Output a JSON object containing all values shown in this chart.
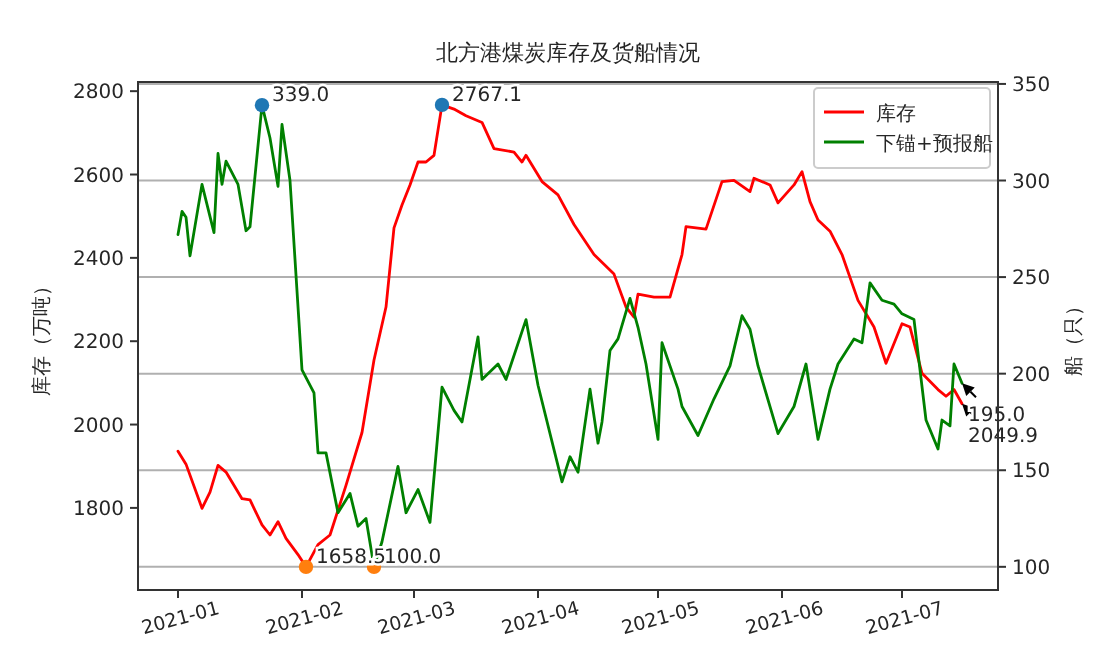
{
  "chart_data": {
    "type": "line",
    "title": "北方港煤炭库存及货船情况",
    "ylabel": "库存（万吨）",
    "y2label": "船（只）",
    "xlim": [
      "2020-12-22",
      "2021-07-25"
    ],
    "xticks": [
      "2021-01",
      "2021-02",
      "2021-03",
      "2021-04",
      "2021-05",
      "2021-06",
      "2021-07"
    ],
    "ylim": [
      1603,
      2822
    ],
    "yticks": [
      1800,
      2000,
      2200,
      2400,
      2600,
      2800
    ],
    "y2lim": [
      88,
      351
    ],
    "y2ticks": [
      100,
      150,
      200,
      250,
      300,
      350
    ],
    "grid": "y",
    "legend": "top right",
    "line_style": "solid",
    "series": [
      {
        "name": "库存",
        "color": "#ff0000",
        "axis": "y",
        "x": [
          "2021-01-01",
          "2021-01-03",
          "2021-01-07",
          "2021-01-09",
          "2021-01-11",
          "2021-01-13",
          "2021-01-17",
          "2021-01-19",
          "2021-01-22",
          "2021-01-24",
          "2021-01-26",
          "2021-01-28",
          "2021-01-31",
          "2021-02-02",
          "2021-02-05",
          "2021-02-08",
          "2021-02-12",
          "2021-02-16",
          "2021-02-19",
          "2021-02-22",
          "2021-02-24",
          "2021-02-26",
          "2021-02-28",
          "2021-03-02",
          "2021-03-04",
          "2021-03-06",
          "2021-03-08",
          "2021-03-11",
          "2021-03-14",
          "2021-03-18",
          "2021-03-21",
          "2021-03-26",
          "2021-03-28",
          "2021-03-29",
          "2021-04-02",
          "2021-04-06",
          "2021-04-10",
          "2021-04-15",
          "2021-04-20",
          "2021-04-23",
          "2021-04-25",
          "2021-04-26",
          "2021-04-30",
          "2021-05-04",
          "2021-05-07",
          "2021-05-08",
          "2021-05-13",
          "2021-05-17",
          "2021-05-20",
          "2021-05-24",
          "2021-05-25",
          "2021-05-29",
          "2021-05-31",
          "2021-06-04",
          "2021-06-06",
          "2021-06-08",
          "2021-06-10",
          "2021-06-13",
          "2021-06-16",
          "2021-06-20",
          "2021-06-24",
          "2021-06-27",
          "2021-07-01",
          "2021-07-03",
          "2021-07-06",
          "2021-07-10",
          "2021-07-12",
          "2021-07-14",
          "2021-07-16"
        ],
        "values": [
          1936,
          1905,
          1799,
          1838,
          1902,
          1886,
          1822,
          1819,
          1759,
          1735,
          1767,
          1727,
          1688,
          1658.5,
          1712,
          1735,
          1854,
          1981,
          2155,
          2282,
          2472,
          2527,
          2575,
          2630,
          2630,
          2646,
          2767.1,
          2757,
          2741,
          2725,
          2662,
          2654,
          2630,
          2646,
          2583,
          2551,
          2480,
          2408,
          2361,
          2282,
          2258,
          2313,
          2306,
          2306,
          2408,
          2475,
          2469,
          2583,
          2586,
          2559,
          2591,
          2575,
          2532,
          2575,
          2607,
          2535,
          2491,
          2464,
          2408,
          2298,
          2234,
          2147,
          2242,
          2234,
          2123,
          2084,
          2068,
          2084,
          2049.9
        ],
        "value_labels": [
          null,
          null,
          null,
          null,
          null,
          null,
          null,
          null,
          null,
          null,
          null,
          null,
          null,
          null,
          null,
          null,
          null,
          null,
          null,
          null,
          null,
          null,
          null,
          null,
          null,
          null,
          null,
          null,
          null,
          null,
          null,
          null,
          null,
          null,
          null,
          null,
          null,
          null,
          null,
          null,
          null,
          null,
          null,
          null,
          null,
          null,
          null,
          null,
          null,
          null,
          null,
          null,
          null,
          null,
          null,
          null,
          null,
          null,
          null,
          null,
          null,
          null,
          null,
          null,
          null,
          null,
          null,
          null,
          "2049.9"
        ]
      },
      {
        "name": "下锚+预报船",
        "color": "#008000",
        "axis": "y2",
        "x": [
          "2021-01-01",
          "2021-01-02",
          "2021-01-03",
          "2021-01-04",
          "2021-01-07",
          "2021-01-10",
          "2021-01-11",
          "2021-01-12",
          "2021-01-13",
          "2021-01-16",
          "2021-01-18",
          "2021-01-19",
          "2021-01-22",
          "2021-01-24",
          "2021-01-26",
          "2021-01-27",
          "2021-01-29",
          "2021-02-01",
          "2021-02-04",
          "2021-02-05",
          "2021-02-07",
          "2021-02-10",
          "2021-02-13",
          "2021-02-15",
          "2021-02-17",
          "2021-02-19",
          "2021-02-21",
          "2021-02-25",
          "2021-02-27",
          "2021-03-02",
          "2021-03-05",
          "2021-03-08",
          "2021-03-11",
          "2021-03-13",
          "2021-03-17",
          "2021-03-18",
          "2021-03-22",
          "2021-03-24",
          "2021-03-29",
          "2021-04-01",
          "2021-04-07",
          "2021-04-09",
          "2021-04-11",
          "2021-04-14",
          "2021-04-16",
          "2021-04-17",
          "2021-04-19",
          "2021-04-21",
          "2021-04-24",
          "2021-04-26",
          "2021-04-28",
          "2021-05-01",
          "2021-05-02",
          "2021-05-06",
          "2021-05-07",
          "2021-05-11",
          "2021-05-15",
          "2021-05-19",
          "2021-05-22",
          "2021-05-24",
          "2021-05-26",
          "2021-05-31",
          "2021-06-04",
          "2021-06-07",
          "2021-06-10",
          "2021-06-13",
          "2021-06-15",
          "2021-06-19",
          "2021-06-21",
          "2021-06-23",
          "2021-06-26",
          "2021-06-29",
          "2021-07-01",
          "2021-07-04",
          "2021-07-07",
          "2021-07-10",
          "2021-07-11",
          "2021-07-13",
          "2021-07-14",
          "2021-07-16"
        ],
        "values": [
          272,
          284,
          281,
          261,
          298,
          273,
          314,
          298,
          310,
          298,
          274,
          276,
          339,
          322,
          297,
          329,
          300,
          202,
          190,
          159,
          159,
          128,
          138,
          121,
          125,
          100,
          113,
          152,
          128,
          140,
          123,
          193,
          181,
          175,
          219,
          197,
          205,
          197,
          228,
          194,
          144,
          157,
          149,
          192,
          164,
          175,
          212,
          218,
          239,
          224,
          205,
          166,
          216,
          192,
          183,
          168,
          187,
          204,
          230,
          223,
          204,
          169,
          183,
          205,
          166,
          192,
          205,
          218,
          216,
          247,
          238,
          236,
          231,
          228,
          176,
          161,
          176,
          173,
          205,
          195
        ],
        "value_labels": [
          null,
          null,
          null,
          null,
          null,
          null,
          null,
          null,
          null,
          null,
          null,
          null,
          null,
          null,
          null,
          null,
          null,
          null,
          null,
          null,
          null,
          null,
          null,
          null,
          null,
          null,
          null,
          null,
          null,
          null,
          null,
          null,
          null,
          null,
          null,
          null,
          null,
          null,
          null,
          null,
          null,
          null,
          null,
          null,
          null,
          null,
          null,
          null,
          null,
          null,
          null,
          null,
          null,
          null,
          null,
          null,
          null,
          null,
          null,
          null,
          null,
          null,
          null,
          null,
          null,
          null,
          null,
          null,
          null,
          null,
          null,
          null,
          null,
          null,
          null,
          null,
          null,
          null,
          null,
          "195.0"
        ]
      },
      {
        "type": "scatter",
        "marker": "circle",
        "color": "#1f77b4",
        "axis": "y2",
        "x": [
          "2021-01-22"
        ],
        "values": [
          339
        ],
        "value_labels": [
          "339.0"
        ]
      },
      {
        "type": "scatter",
        "marker": "circle",
        "color": "#1f77b4",
        "axis": "y",
        "x": [
          "2021-03-08"
        ],
        "values": [
          2767.1
        ],
        "value_labels": [
          "2767.1"
        ]
      },
      {
        "type": "scatter",
        "marker": "circle",
        "color": "#ff7f0e",
        "axis": "y",
        "x": [
          "2021-02-02"
        ],
        "values": [
          1658.5
        ],
        "value_labels": [
          "1658.5"
        ]
      },
      {
        "type": "scatter",
        "marker": "circle",
        "color": "#ff7f0e",
        "axis": "y2",
        "x": [
          "2021-02-19"
        ],
        "values": [
          100
        ],
        "value_labels": [
          "100.0"
        ]
      }
    ]
  }
}
